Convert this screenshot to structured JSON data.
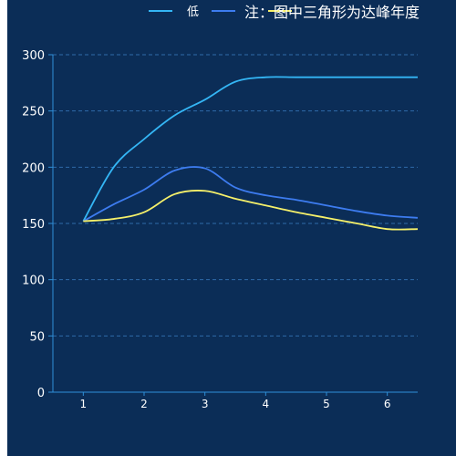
{
  "chart_data": {
    "type": "line",
    "x": [
      1,
      1.5,
      2,
      2.5,
      3,
      3.5,
      4,
      4.5,
      5,
      5.5,
      6,
      6.5
    ],
    "x_ticks": [
      "1",
      "2",
      "3",
      "4",
      "5",
      "6"
    ],
    "ylim": [
      0,
      300
    ],
    "y_ticks": [
      "0",
      "50",
      "100",
      "150",
      "200",
      "250",
      "300"
    ],
    "grid": true,
    "legend_position": "top-right",
    "note": "注：图中三角形为达峰年度",
    "series": [
      {
        "name": "低",
        "color": "#34b6f5",
        "values": [
          152,
          200,
          225,
          246,
          260,
          276,
          280,
          280,
          280,
          280,
          280,
          280
        ]
      },
      {
        "name": "",
        "color": "#3d7cf0",
        "values": [
          152,
          167,
          180,
          197,
          199,
          182,
          175,
          171,
          166,
          161,
          157,
          155
        ]
      },
      {
        "name": "",
        "color": "#f5f06a",
        "values": [
          152,
          154,
          160,
          176,
          179,
          172,
          166,
          160,
          155,
          150,
          145,
          145
        ]
      }
    ]
  }
}
